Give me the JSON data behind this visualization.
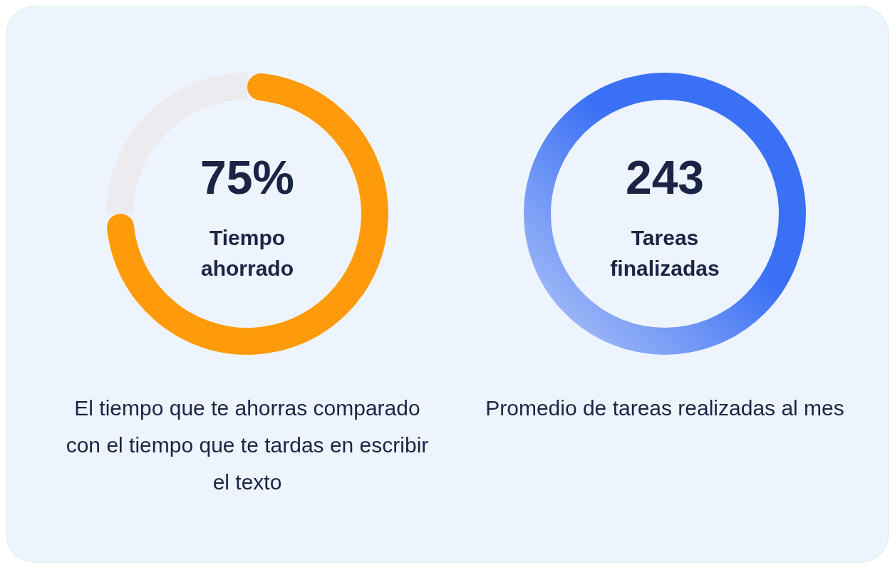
{
  "chart_data": [
    {
      "type": "donut",
      "title": "Tiempo ahorrado",
      "categories": [
        null,
        null
      ],
      "values": [
        75,
        25
      ],
      "colors": [
        "#ff9a0a",
        "#ebebf0"
      ],
      "value_labels": [
        "75%",
        null
      ],
      "annotations": [
        "El tiempo que te ahorras comparado con el tiempo que te tardas en escribir el texto"
      ]
    },
    {
      "type": "other",
      "title": "Tareas finalizadas",
      "values": [
        243
      ],
      "data_labels": true,
      "annotations": [
        "Promedio de tareas realizadas al mes"
      ]
    }
  ]
}
